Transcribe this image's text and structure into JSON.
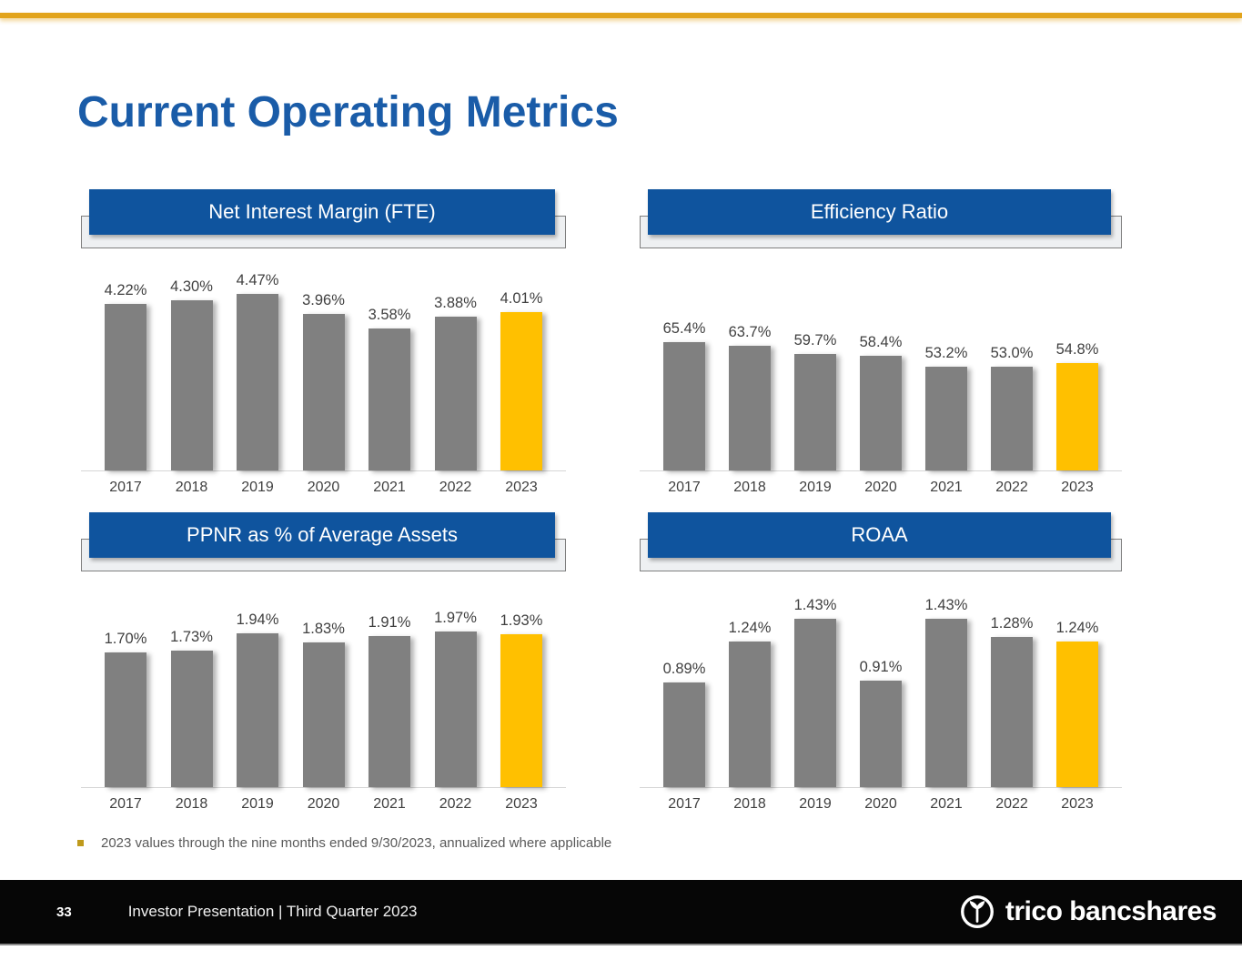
{
  "slide": {
    "title": "Current Operating Metrics",
    "footnote": "2023 values through the nine months ended 9/30/2023, annualized where applicable",
    "footer": {
      "page_number": "33",
      "label": "Investor Presentation | Third Quarter 2023",
      "logo_text": "trico bancshares",
      "logo_icon": "trico-circle-leaf-icon"
    },
    "colors": {
      "title_blue": "#1A5CA8",
      "header_bar_blue": "#0F549E",
      "top_rule_gold": "#E2A41C",
      "bar_gray": "#808080",
      "bar_highlight_gold": "#FFC000",
      "footnote_bullet_gold": "#BF9A1C",
      "footer_black": "#060606"
    }
  },
  "chart_data": [
    {
      "id": "net-interest-margin",
      "type": "bar",
      "title": "Net Interest Margin (FTE)",
      "categories": [
        "2017",
        "2018",
        "2019",
        "2020",
        "2021",
        "2022",
        "2023"
      ],
      "values": [
        4.22,
        4.3,
        4.47,
        3.96,
        3.58,
        3.88,
        4.01
      ],
      "labels": [
        "4.22%",
        "4.30%",
        "4.47%",
        "3.96%",
        "3.58%",
        "3.88%",
        "4.01%"
      ],
      "ylim": [
        0,
        4.6
      ],
      "grid": false,
      "highlight_last": true,
      "colors": {
        "default": "#808080",
        "highlight": "#FFC000"
      }
    },
    {
      "id": "efficiency-ratio",
      "type": "bar",
      "title": "Efficiency Ratio",
      "categories": [
        "2017",
        "2018",
        "2019",
        "2020",
        "2021",
        "2022",
        "2023"
      ],
      "values": [
        65.4,
        63.7,
        59.7,
        58.4,
        53.2,
        53.0,
        54.8
      ],
      "labels": [
        "65.4%",
        "63.7%",
        "59.7%",
        "58.4%",
        "53.2%",
        "53.0%",
        "54.8%"
      ],
      "ylim": [
        0,
        93
      ],
      "grid": false,
      "highlight_last": true,
      "colors": {
        "default": "#808080",
        "highlight": "#FFC000"
      }
    },
    {
      "id": "ppnr-pct-average-assets",
      "type": "bar",
      "title": "PPNR as % of Average Assets",
      "categories": [
        "2017",
        "2018",
        "2019",
        "2020",
        "2021",
        "2022",
        "2023"
      ],
      "values": [
        1.7,
        1.73,
        1.94,
        1.83,
        1.91,
        1.97,
        1.93
      ],
      "labels": [
        "1.70%",
        "1.73%",
        "1.94%",
        "1.83%",
        "1.91%",
        "1.97%",
        "1.93%"
      ],
      "ylim": [
        0,
        2.3
      ],
      "grid": false,
      "highlight_last": true,
      "colors": {
        "default": "#808080",
        "highlight": "#FFC000"
      }
    },
    {
      "id": "roaa",
      "type": "bar",
      "title": "ROAA",
      "categories": [
        "2017",
        "2018",
        "2019",
        "2020",
        "2021",
        "2022",
        "2023"
      ],
      "values": [
        0.89,
        1.24,
        1.43,
        0.91,
        1.43,
        1.28,
        1.24
      ],
      "labels": [
        "0.89%",
        "1.24%",
        "1.43%",
        "0.91%",
        "1.43%",
        "1.28%",
        "1.24%"
      ],
      "ylim": [
        0,
        1.55
      ],
      "grid": false,
      "highlight_last": true,
      "colors": {
        "default": "#808080",
        "highlight": "#FFC000"
      }
    }
  ]
}
